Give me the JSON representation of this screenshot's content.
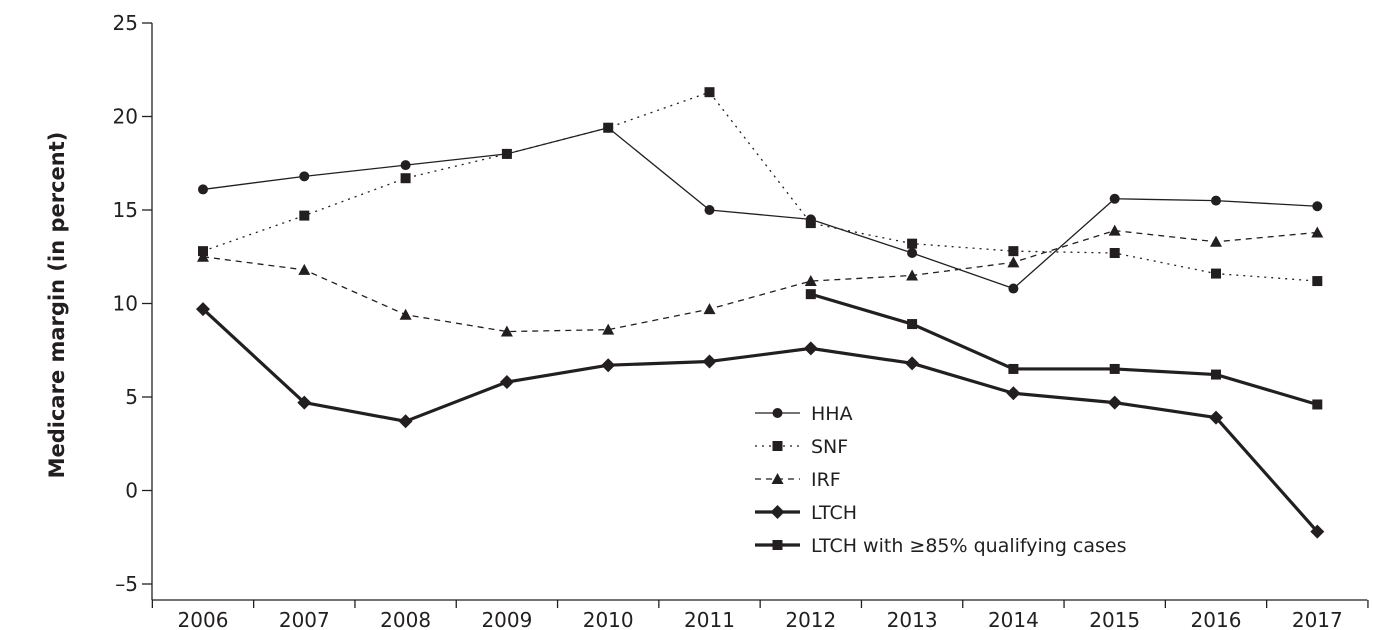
{
  "chart_data": {
    "type": "line",
    "title": "",
    "xlabel": "",
    "ylabel": "Medicare margin (in percent)",
    "x": [
      "2006",
      "2007",
      "2008",
      "2009",
      "2010",
      "2011",
      "2012",
      "2013",
      "2014",
      "2015",
      "2016",
      "2017"
    ],
    "ylim": [
      -5,
      25
    ],
    "yticks": [
      -5,
      0,
      5,
      10,
      15,
      20,
      25
    ],
    "ytick_labels": [
      "–5",
      "0",
      "5",
      "10",
      "15",
      "20",
      "25"
    ],
    "grid": false,
    "legend_position": "bottom-right",
    "series": [
      {
        "name": "HHA",
        "marker": "circle",
        "line_style": "solid",
        "weight": "thin",
        "values": [
          16.1,
          16.8,
          17.4,
          18.0,
          19.4,
          15.0,
          14.5,
          12.7,
          10.8,
          15.6,
          15.5,
          15.2
        ]
      },
      {
        "name": "SNF",
        "marker": "square",
        "line_style": "dotted",
        "weight": "thin",
        "values": [
          12.8,
          14.7,
          16.7,
          18.0,
          19.4,
          21.3,
          14.3,
          13.2,
          12.8,
          12.7,
          11.6,
          11.2
        ]
      },
      {
        "name": "IRF",
        "marker": "triangle",
        "line_style": "dashed",
        "weight": "thin",
        "values": [
          12.5,
          11.8,
          9.4,
          8.5,
          8.6,
          9.7,
          11.2,
          11.5,
          12.2,
          13.9,
          13.3,
          13.8
        ]
      },
      {
        "name": "LTCH",
        "marker": "diamond",
        "line_style": "solid",
        "weight": "thick",
        "values": [
          9.7,
          4.7,
          3.7,
          5.8,
          6.7,
          6.9,
          7.6,
          6.8,
          5.2,
          4.7,
          3.9,
          -2.2
        ]
      },
      {
        "name": "LTCH with ≥85% qualifying cases",
        "marker": "square",
        "line_style": "solid",
        "weight": "thick",
        "values": [
          null,
          null,
          null,
          null,
          null,
          null,
          10.5,
          8.9,
          6.5,
          6.5,
          6.2,
          4.6
        ]
      }
    ]
  }
}
